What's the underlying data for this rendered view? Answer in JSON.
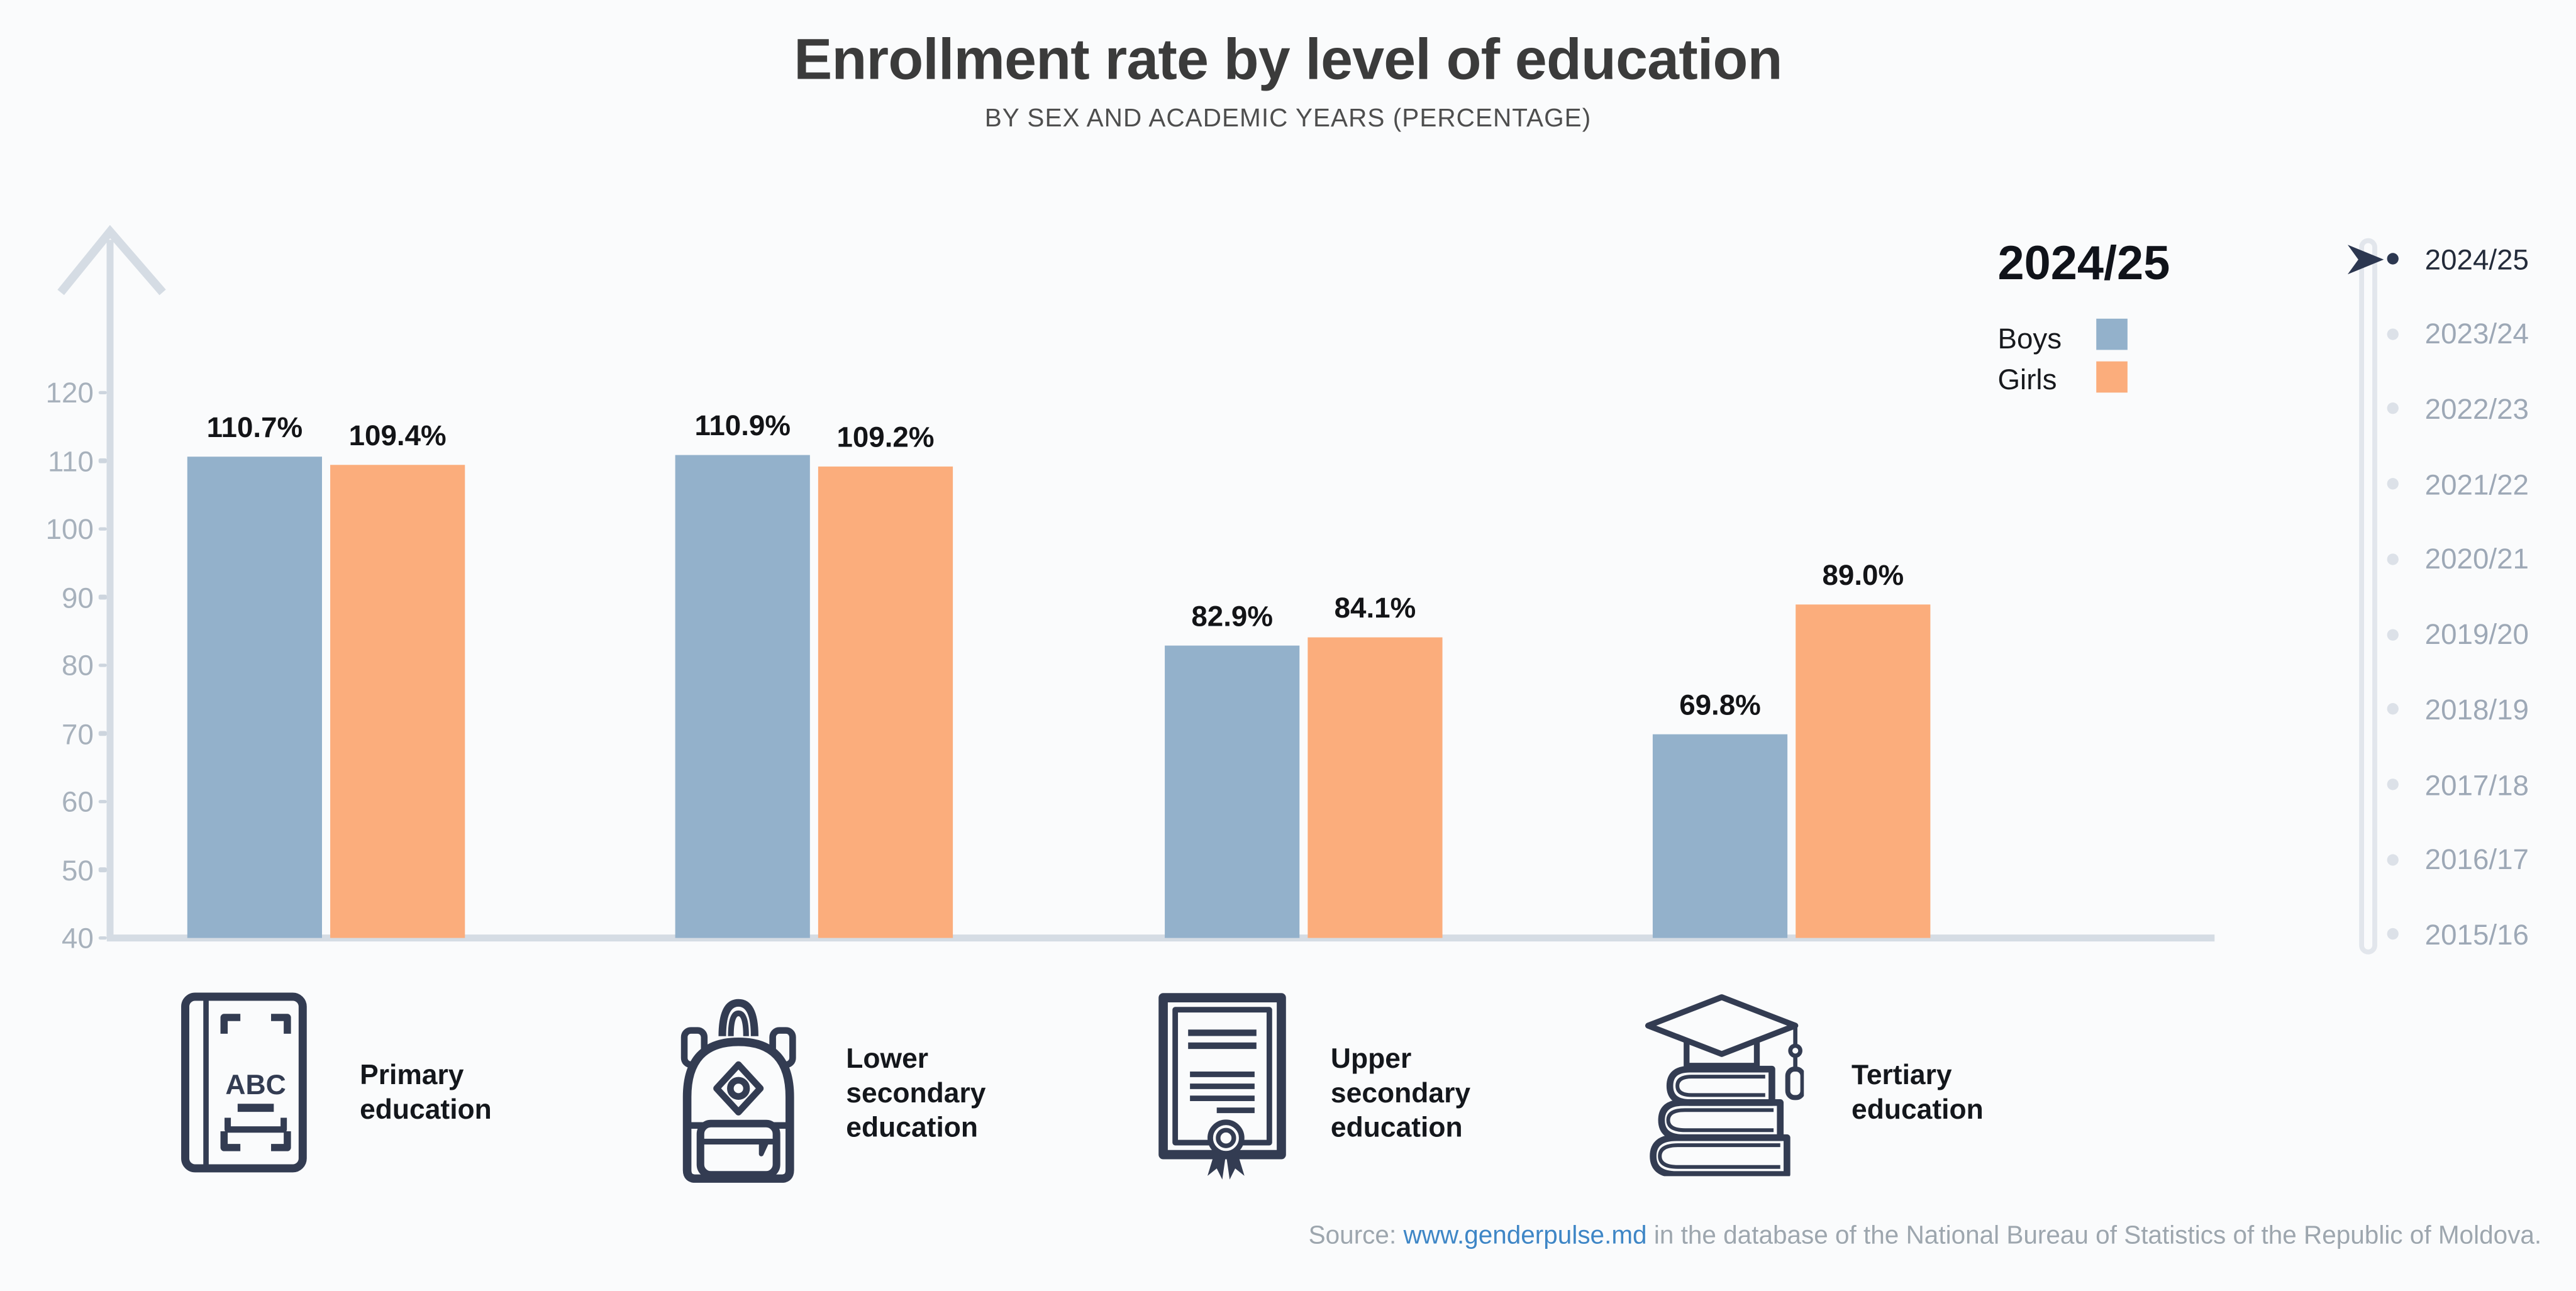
{
  "page": {
    "background": "#FAFBFC"
  },
  "header": {
    "title": "Enrollment rate by level of education",
    "subtitle": "BY SEX AND ACADEMIC YEARS (PERCENTAGE)"
  },
  "legend": {
    "year": "2024/25",
    "items": [
      {
        "label": "Boys",
        "color": "#93B1CB"
      },
      {
        "label": "Girls",
        "color": "#FBAD7C"
      }
    ]
  },
  "chart_data": {
    "type": "bar",
    "title": "Enrollment rate by level of education",
    "subtitle": "BY SEX AND ACADEMIC YEARS (PERCENTAGE)",
    "academic_year": "2024/25",
    "categories": [
      "Primary education",
      "Lower secondary education",
      "Upper secondary education",
      "Tertiary education"
    ],
    "series": [
      {
        "name": "Boys",
        "color": "#93B1CB",
        "values": [
          110.7,
          110.9,
          82.9,
          69.8
        ]
      },
      {
        "name": "Girls",
        "color": "#FBAD7C",
        "values": [
          109.4,
          109.2,
          84.1,
          89.0
        ]
      }
    ],
    "value_suffix": "%",
    "yticks": [
      120,
      110,
      100,
      90,
      80,
      70,
      60,
      50,
      40
    ],
    "ylim": [
      40,
      128
    ],
    "grid": false,
    "legend_position": "top-right"
  },
  "timeline": {
    "selected": "2024/25",
    "years": [
      "2024/25",
      "2023/24",
      "2022/23",
      "2021/22",
      "2020/21",
      "2019/20",
      "2018/19",
      "2017/18",
      "2016/17",
      "2015/16"
    ]
  },
  "education_levels": [
    {
      "icon": "book-abc-icon",
      "label": "Primary education"
    },
    {
      "icon": "backpack-icon",
      "label": "Lower secondary education"
    },
    {
      "icon": "certificate-icon",
      "label": "Upper secondary education"
    },
    {
      "icon": "graduation-cap-books-icon",
      "label": "Tertiary education"
    }
  ],
  "source": {
    "prefix": "Source: ",
    "link": "www.genderpulse.md",
    "suffix": " in the database of the National Bureau of Statistics of the Republic of Moldova."
  }
}
